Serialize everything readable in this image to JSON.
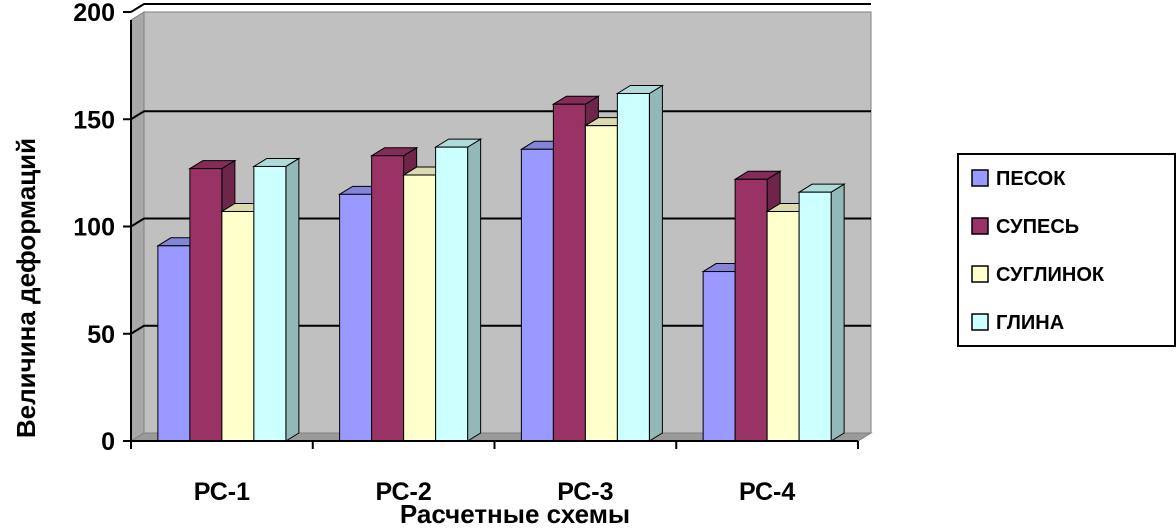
{
  "chart_data": {
    "type": "bar",
    "categories": [
      "РС-1",
      "РС-2",
      "РС-3",
      "РС-4"
    ],
    "series": [
      {
        "name": "ПЕСОК",
        "values": [
          91,
          115,
          136,
          79
        ]
      },
      {
        "name": "СУПЕСЬ",
        "values": [
          127,
          133,
          157,
          122
        ]
      },
      {
        "name": "СУГЛИНОК",
        "values": [
          107,
          124,
          147,
          107
        ]
      },
      {
        "name": "ГЛИНА",
        "values": [
          128,
          137,
          162,
          116
        ]
      }
    ],
    "xlabel": "Расчетные схемы",
    "ylabel": "Величина деформаций",
    "ylim": [
      0,
      200
    ],
    "yticks": [
      0,
      50,
      100,
      150,
      200
    ],
    "grid": true,
    "legend_position": "right",
    "colors": {
      "ПЕСОК": "#9999ff",
      "СУПЕСЬ": "#993366",
      "СУГЛИНОК": "#ffffcc",
      "ГЛИНА": "#ccffff",
      "plot_background": "#c0c0c0"
    }
  }
}
